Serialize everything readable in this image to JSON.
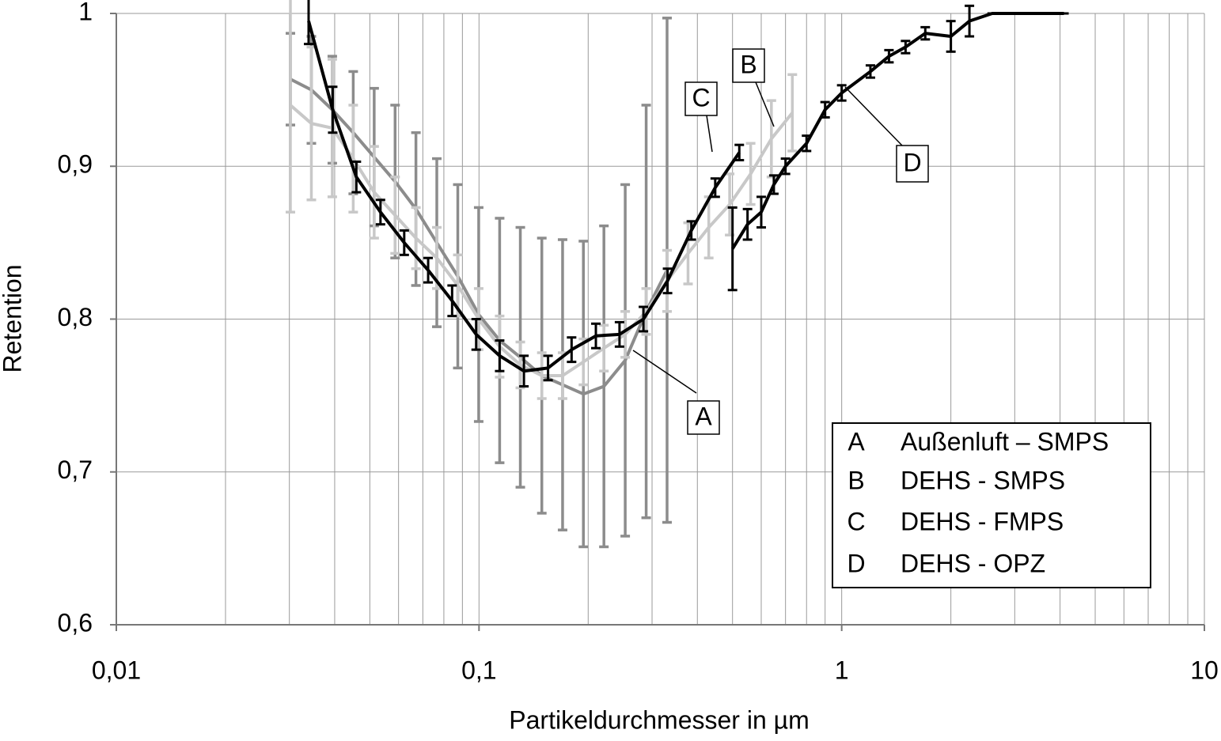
{
  "chart_data": {
    "type": "line",
    "xlabel": "Partikeldurchmesser in µm",
    "ylabel": "Retention",
    "xscale": "log",
    "grid": true,
    "xlim": [
      0.01,
      10
    ],
    "ylim": [
      0.6,
      1
    ],
    "xticks": [
      {
        "value": 0.01,
        "label": "0,01"
      },
      {
        "value": 0.1,
        "label": "0,1"
      },
      1,
      10
    ],
    "xgrid_minor": [
      0.02,
      0.03,
      0.04,
      0.05,
      0.06,
      0.07,
      0.08,
      0.09,
      0.2,
      0.3,
      0.4,
      0.5,
      0.6,
      0.7,
      0.8,
      0.9,
      2,
      3,
      4,
      5,
      6,
      7,
      8,
      9
    ],
    "yticks": [
      {
        "value": 0.6,
        "label": "0,6"
      },
      {
        "value": 0.7,
        "label": "0,7"
      },
      {
        "value": 0.8,
        "label": "0,8"
      },
      {
        "value": 0.9,
        "label": "0,9"
      },
      1
    ],
    "legend": "lower right",
    "series": [
      {
        "label": "A",
        "name": "Außenluft – SMPS",
        "color": "#8c8c8c",
        "x": [
          0.0302,
          0.0345,
          0.0394,
          0.045,
          0.0514,
          0.0587,
          0.067,
          0.0765,
          0.0874,
          0.0998,
          0.114,
          0.13,
          0.149,
          0.17,
          0.194,
          0.221,
          0.253,
          0.289,
          0.33
        ],
        "values": [
          0.957,
          0.95,
          0.937,
          0.922,
          0.906,
          0.89,
          0.872,
          0.85,
          0.828,
          0.803,
          0.786,
          0.775,
          0.763,
          0.757,
          0.751,
          0.756,
          0.773,
          0.805,
          0.832
        ],
        "errors": [
          0.03,
          0.035,
          0.035,
          0.04,
          0.045,
          0.05,
          0.05,
          0.055,
          0.06,
          0.07,
          0.08,
          0.085,
          0.09,
          0.095,
          0.1,
          0.105,
          0.115,
          0.135,
          0.165
        ]
      },
      {
        "label": "B",
        "name": "DEHS - SMPS",
        "color": "#c8c8c8",
        "x": [
          0.0302,
          0.0345,
          0.0394,
          0.045,
          0.0514,
          0.0587,
          0.067,
          0.0765,
          0.0874,
          0.0998,
          0.114,
          0.13,
          0.149,
          0.17,
          0.194,
          0.221,
          0.253,
          0.289,
          0.33,
          0.377,
          0.43,
          0.491,
          0.561,
          0.64,
          0.731
        ],
        "values": [
          0.94,
          0.928,
          0.925,
          0.905,
          0.883,
          0.868,
          0.853,
          0.84,
          0.822,
          0.8,
          0.782,
          0.77,
          0.763,
          0.763,
          0.772,
          0.781,
          0.79,
          0.805,
          0.825,
          0.843,
          0.86,
          0.875,
          0.895,
          0.918,
          0.935
        ],
        "errors": [
          0.07,
          0.05,
          0.045,
          0.035,
          0.03,
          0.025,
          0.02,
          0.02,
          0.02,
          0.02,
          0.02,
          0.015,
          0.015,
          0.015,
          0.015,
          0.015,
          0.015,
          0.015,
          0.02,
          0.02,
          0.02,
          0.02,
          0.02,
          0.025,
          0.025
        ]
      },
      {
        "label": "C",
        "name": "DEHS - FMPS",
        "color": "#000000",
        "x": [
          0.0339,
          0.0395,
          0.0459,
          0.0535,
          0.0622,
          0.0724,
          0.0843,
          0.0982,
          0.114,
          0.133,
          0.155,
          0.18,
          0.21,
          0.244,
          0.284,
          0.331,
          0.385,
          0.448,
          0.522
        ],
        "values": [
          0.995,
          0.937,
          0.893,
          0.87,
          0.85,
          0.832,
          0.812,
          0.79,
          0.776,
          0.766,
          0.768,
          0.78,
          0.789,
          0.79,
          0.8,
          0.825,
          0.858,
          0.886,
          0.909
        ],
        "errors": [
          0.015,
          0.015,
          0.01,
          0.008,
          0.008,
          0.008,
          0.01,
          0.01,
          0.01,
          0.01,
          0.008,
          0.008,
          0.008,
          0.008,
          0.008,
          0.008,
          0.006,
          0.006,
          0.005
        ]
      },
      {
        "label": "D",
        "name": "DEHS - OPZ",
        "color": "#000000",
        "x": [
          0.5,
          0.55,
          0.6,
          0.65,
          0.7,
          0.8,
          0.9,
          1,
          1.2,
          1.35,
          1.5,
          1.7,
          2,
          2.25,
          2.6,
          4.1
        ],
        "values": [
          0.846,
          0.862,
          0.87,
          0.888,
          0.9,
          0.915,
          0.937,
          0.948,
          0.962,
          0.972,
          0.978,
          0.987,
          0.985,
          0.995,
          1,
          1
        ],
        "errors": [
          0.027,
          0.01,
          0.01,
          0.006,
          0.005,
          0.005,
          0.005,
          0.005,
          0.004,
          0.004,
          0.004,
          0.004,
          0.01,
          0.01,
          0,
          0
        ]
      }
    ]
  }
}
